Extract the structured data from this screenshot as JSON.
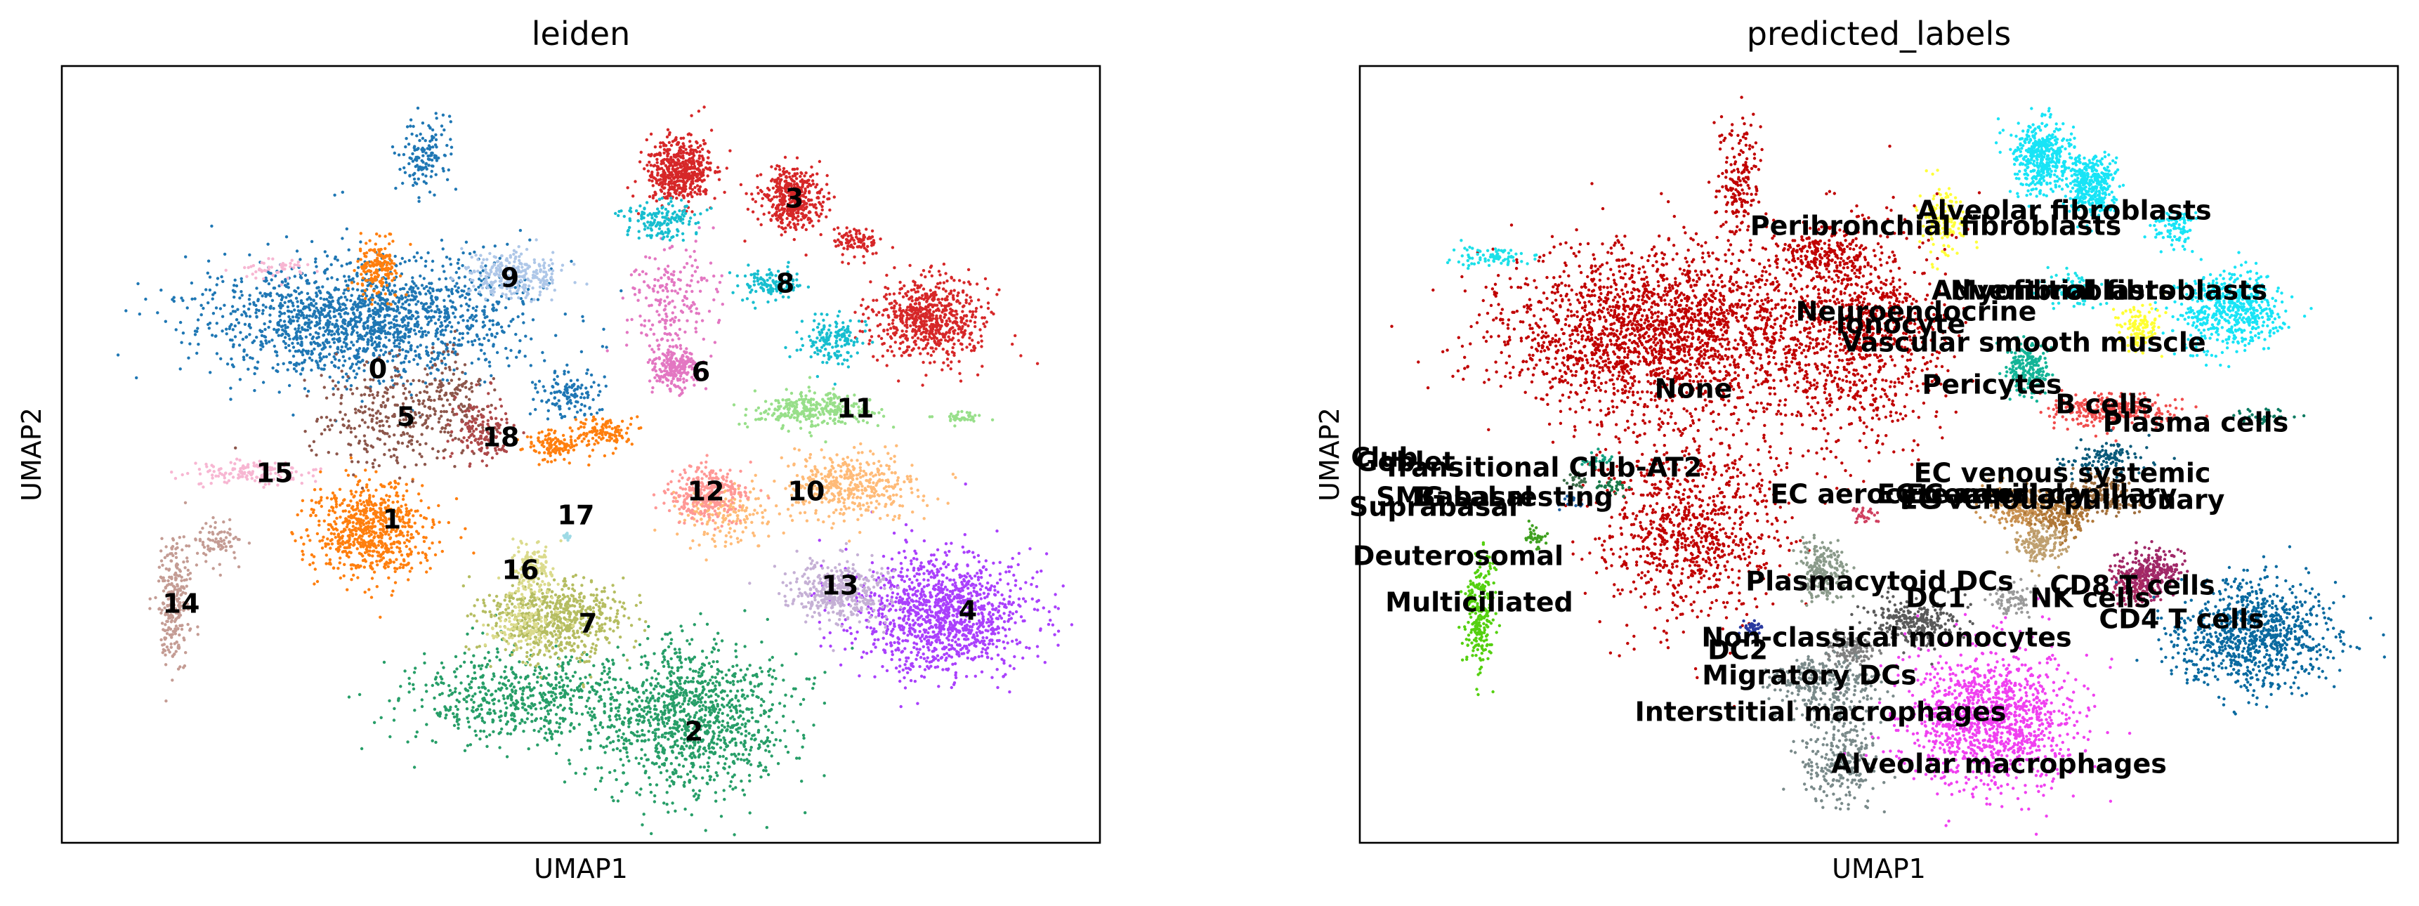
{
  "chart_data": [
    {
      "type": "scatter",
      "title": "leiden",
      "xlabel": "UMAP1",
      "ylabel": "UMAP2",
      "grid": false,
      "legend": "on data",
      "clusters": [
        {
          "name": "0",
          "color": "#1f77b4",
          "labeled": true
        },
        {
          "name": "1",
          "color": "#ff7f0e",
          "labeled": true
        },
        {
          "name": "2",
          "color": "#279e68",
          "labeled": true
        },
        {
          "name": "3",
          "color": "#d62728",
          "labeled": true
        },
        {
          "name": "4",
          "color": "#aa40fc",
          "labeled": true
        },
        {
          "name": "5",
          "color": "#8c564b",
          "labeled": true
        },
        {
          "name": "6",
          "color": "#e377c2",
          "labeled": true
        },
        {
          "name": "7",
          "color": "#b5bd61",
          "labeled": true
        },
        {
          "name": "8",
          "color": "#17becf",
          "labeled": true
        },
        {
          "name": "9",
          "color": "#aec7e8",
          "labeled": true
        },
        {
          "name": "10",
          "color": "#ffbb78",
          "labeled": true
        },
        {
          "name": "11",
          "color": "#98df8a",
          "labeled": true
        },
        {
          "name": "12",
          "color": "#ff9896",
          "labeled": true
        },
        {
          "name": "13",
          "color": "#c5b0d5",
          "labeled": true
        },
        {
          "name": "14",
          "color": "#c49c94",
          "labeled": true
        },
        {
          "name": "15",
          "color": "#f7b6d2",
          "labeled": true
        },
        {
          "name": "16",
          "color": "#dbdb8d",
          "labeled": true
        },
        {
          "name": "17",
          "color": "#9edae5",
          "labeled": true
        },
        {
          "name": "18",
          "color": "#ad494a",
          "labeled": true
        }
      ]
    },
    {
      "type": "scatter",
      "title": "predicted_labels",
      "xlabel": "UMAP1",
      "ylabel": "UMAP2",
      "grid": false,
      "legend": "on data",
      "clusters": [
        {
          "name": "Alveolar fibroblasts",
          "color": "#18e4f6",
          "labeled": true
        },
        {
          "name": "Peribronchial fibroblasts",
          "color": "#ffff3a",
          "labeled": true
        },
        {
          "name": "Adventitial fibroblasts",
          "color": "#18e4f6",
          "labeled": true
        },
        {
          "name": "Myofibroblasts",
          "color": "#1ce0e8",
          "labeled": true
        },
        {
          "name": "Neuroendocrine",
          "color": "#c00000",
          "labeled": true
        },
        {
          "name": "Ionocyte",
          "color": "#c00000",
          "labeled": true
        },
        {
          "name": "Vascular smooth muscle",
          "color": "#ffff33",
          "labeled": true
        },
        {
          "name": "None",
          "color": "#c00000",
          "labeled": true
        },
        {
          "name": "Pericytes",
          "color": "#13b497",
          "labeled": true
        },
        {
          "name": "B cells",
          "color": "#f04c4c",
          "labeled": true
        },
        {
          "name": "Plasma cells",
          "color": "#0b7a60",
          "labeled": true
        },
        {
          "name": "Club",
          "color": "#1ce0e8",
          "labeled": true
        },
        {
          "name": "Goblet",
          "color": "#0a5a7a",
          "labeled": true
        },
        {
          "name": "Transitional Club-AT2",
          "color": "#14a080",
          "labeled": true
        },
        {
          "name": "SMG basal",
          "color": "#3d6d4a",
          "labeled": true
        },
        {
          "name": "Basal resting",
          "color": "#1a7a4a",
          "labeled": true
        },
        {
          "name": "Suprabasal",
          "color": "#1f5fa0",
          "labeled": true
        },
        {
          "name": "EC venous systemic",
          "color": "#a07040",
          "labeled": true
        },
        {
          "name": "EC aerocyte capillary",
          "color": "#c89050",
          "labeled": true
        },
        {
          "name": "EC general capillary",
          "color": "#b07838",
          "labeled": true
        },
        {
          "name": "EC arterial",
          "color": "#d04060",
          "labeled": true
        },
        {
          "name": "EC venous pulmonary",
          "color": "#bfa070",
          "labeled": true
        },
        {
          "name": "Deuterosomal",
          "color": "#3fa020",
          "labeled": true
        },
        {
          "name": "Multiciliated",
          "color": "#55d010",
          "labeled": true
        },
        {
          "name": "Plasmacytoid DCs",
          "color": "#8a9a8a",
          "labeled": true
        },
        {
          "name": "DC1",
          "color": "#9a9a9a",
          "labeled": true
        },
        {
          "name": "NK cells",
          "color": "#a82860",
          "labeled": true
        },
        {
          "name": "CD8 T cells",
          "color": "#a02868",
          "labeled": true
        },
        {
          "name": "CD4 T cells",
          "color": "#0a6aa0",
          "labeled": true
        },
        {
          "name": "Non-classical monocytes",
          "color": "#5a5a5a",
          "labeled": true
        },
        {
          "name": "DC2",
          "color": "#2a3aa0",
          "labeled": true
        },
        {
          "name": "Migratory DCs",
          "color": "#808080",
          "labeled": true
        },
        {
          "name": "Interstitial macrophages",
          "color": "#7a8a8a",
          "labeled": true
        },
        {
          "name": "Alveolar macrophages",
          "color": "#f040f0",
          "labeled": true
        }
      ]
    }
  ]
}
